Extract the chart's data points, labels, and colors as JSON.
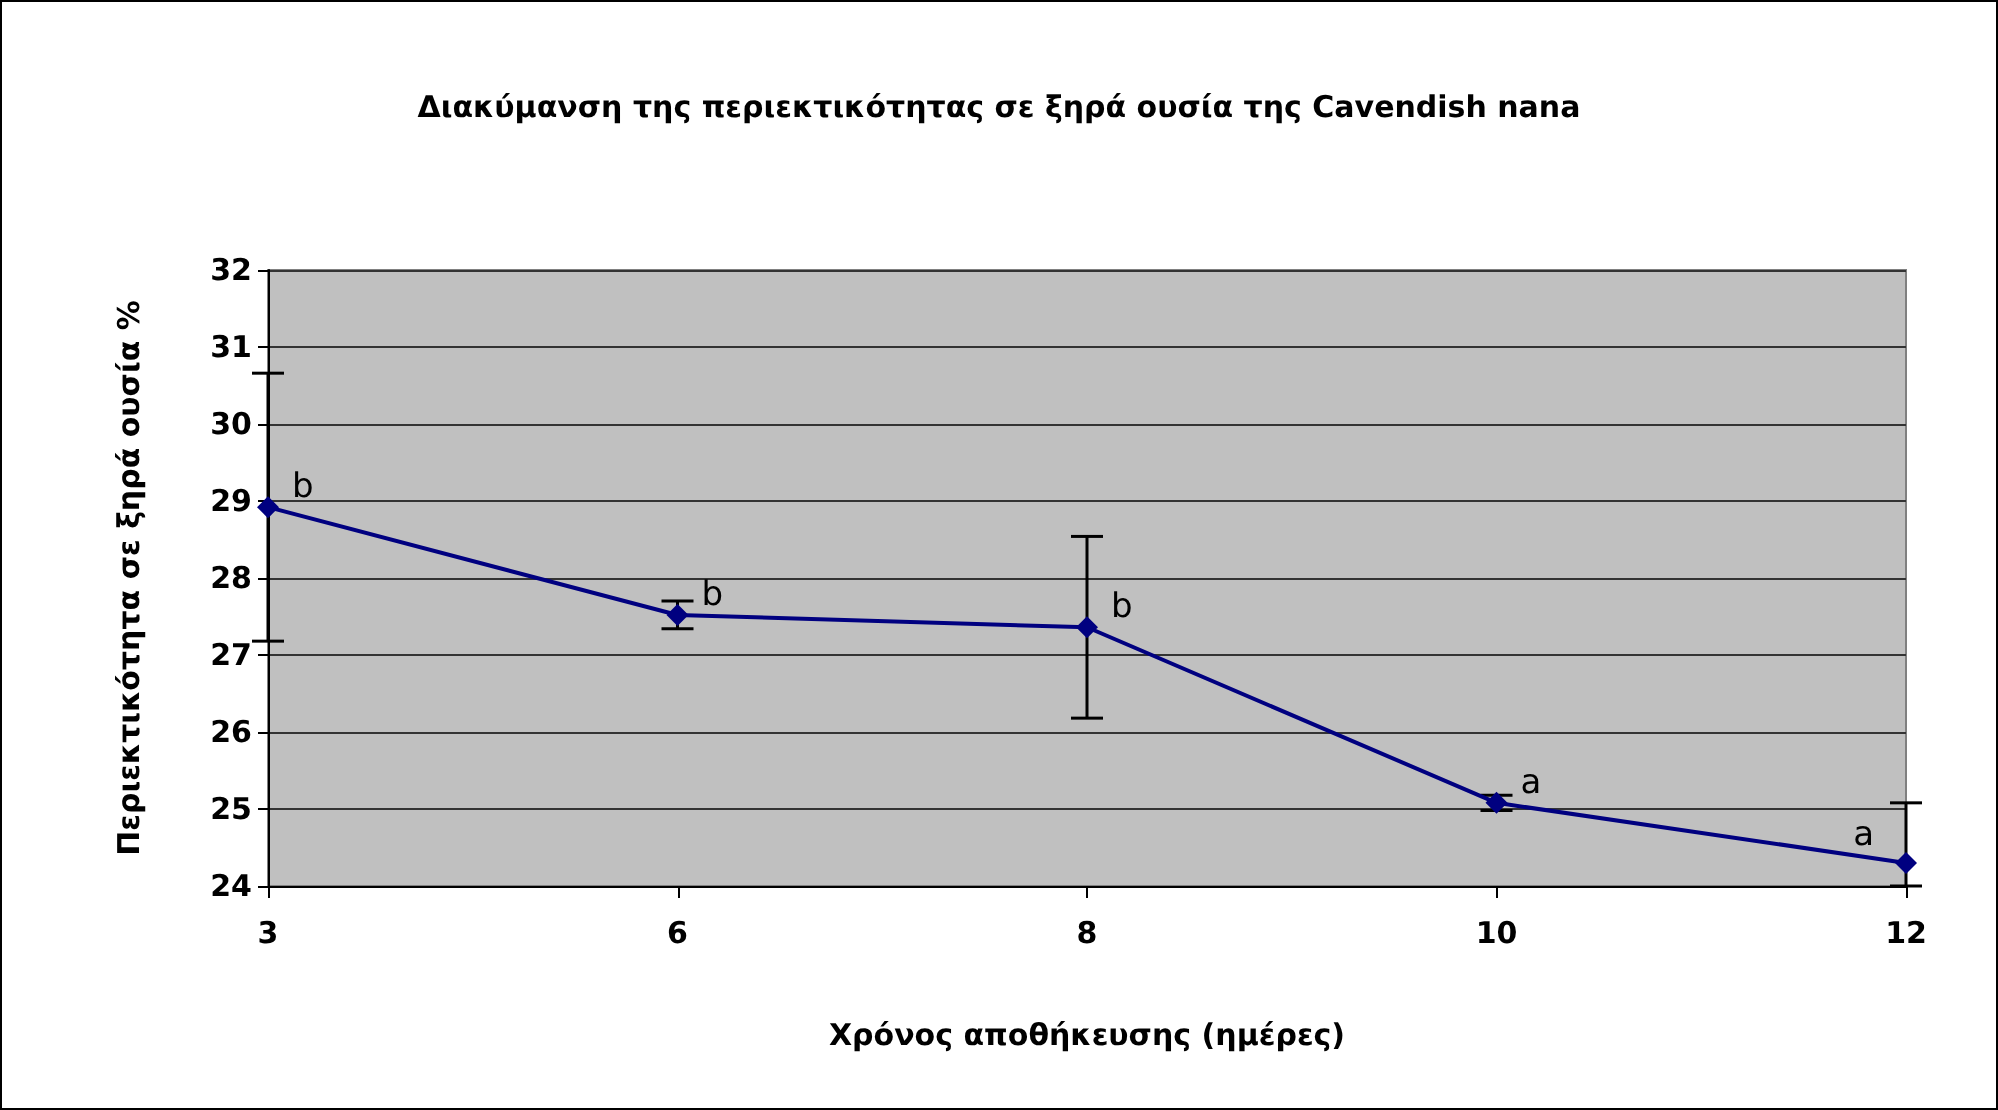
{
  "chart_data": {
    "type": "line",
    "title": "Διακύμανση της περιεκτικότητας σε ξηρά ουσία της Cavendish nana",
    "xlabel": "Χρόνος αποθήκευσης (ημέρες)",
    "ylabel": "Περιεκτικότητα σε ξηρά ουσία %",
    "categories": [
      "3",
      "6",
      "8",
      "10",
      "12"
    ],
    "series": [
      {
        "color": "#000080",
        "values": [
          28.92,
          27.52,
          27.36,
          25.08,
          24.3
        ],
        "errors": [
          1.74,
          0.18,
          1.18,
          0.1,
          [
            24,
            25.08
          ]
        ]
      }
    ],
    "ylim": [
      24,
      32
    ],
    "yticks": [
      24,
      25,
      26,
      27,
      28,
      29,
      30,
      31,
      32
    ],
    "grid": "y",
    "marker": "diamond",
    "line_style": "solid",
    "annotations": [
      {
        "text": "b",
        "x": "3",
        "y": 28.92
      },
      {
        "text": "b",
        "x": "6",
        "y": 27.52
      },
      {
        "text": "b",
        "x": "8",
        "y": 27.36
      },
      {
        "text": "a",
        "x": "10",
        "y": 25.08
      },
      {
        "text": "a",
        "x": "12",
        "y": 24.3
      }
    ]
  }
}
